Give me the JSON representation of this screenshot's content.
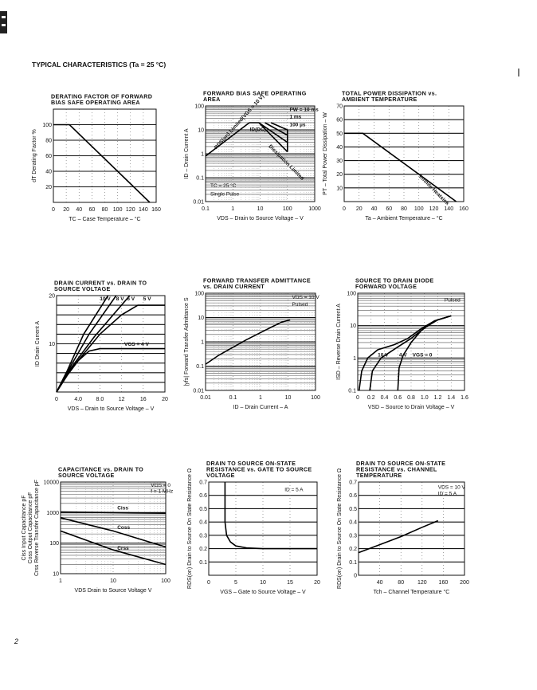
{
  "header": {
    "title": "TYPICAL CHARACTERISTICS (Ta = 25 °C)",
    "page_number": "2"
  },
  "charts": [
    {
      "title": [
        "DERATING FACTOR OF FORWARD",
        "BIAS SAFE OPERATING AREA"
      ],
      "xlabel": "TC – Case Temperature – °C",
      "ylabel": [
        "dT   Derating Factor   %"
      ],
      "xlog": false,
      "ylog": false,
      "xlim": [
        0,
        160
      ],
      "ylim": [
        0,
        120
      ],
      "xticks": [
        0,
        20,
        40,
        60,
        80,
        100,
        120,
        140,
        160
      ],
      "xtick_labels": [
        "0",
        "20",
        "40",
        "60",
        "80",
        "100",
        "120",
        "140",
        "160"
      ],
      "yticks": [
        20,
        40,
        60,
        80,
        100
      ],
      "ytick_labels": [
        "20",
        "40",
        "60",
        "80",
        "100"
      ],
      "series": [
        {
          "points": [
            [
              0,
              100
            ],
            [
              25,
              100
            ],
            [
              150,
              0
            ]
          ]
        }
      ],
      "annotations": []
    },
    {
      "title": [
        "FORWARD BIAS SAFE OPERATING",
        "AREA"
      ],
      "xlabel": "VDS – Drain to Source Voltage – V",
      "ylabel": [
        "ID – Drain Current   A"
      ],
      "xlog": true,
      "ylog": true,
      "xlim": [
        0.1,
        1000
      ],
      "ylim": [
        0.01,
        100
      ],
      "xticks": [
        0.1,
        1,
        10,
        100,
        1000
      ],
      "xtick_labels": [
        "0.1",
        "1",
        "10",
        "100",
        "1000"
      ],
      "yticks": [
        0.01,
        0.1,
        1,
        10,
        100
      ],
      "ytick_labels": [
        "0.01",
        "0.1",
        "1",
        "10",
        "100"
      ],
      "series": [
        {
          "name": "RDS(on) Limited(VGS = 10 V)",
          "points": [
            [
              0.1,
              0.8
            ],
            [
              4,
              20
            ]
          ]
        },
        {
          "name": "ID(DC)",
          "points": [
            [
              4,
              20
            ],
            [
              9,
              20
            ],
            [
              100,
              1.2
            ]
          ]
        },
        {
          "name": "PW = 10 ms",
          "points": [
            [
              9,
              20
            ],
            [
              100,
              3
            ]
          ]
        },
        {
          "name": "1 ms",
          "points": [
            [
              15,
              20
            ],
            [
              100,
              6
            ]
          ]
        },
        {
          "name": "100 µs",
          "points": [
            [
              25,
              20
            ],
            [
              100,
              10
            ],
            [
              100,
              1.2
            ]
          ]
        },
        {
          "name": "Dissipation Limited",
          "points": []
        }
      ],
      "annotations": [
        "TC = 25 °C",
        "Single Pulse"
      ]
    },
    {
      "title": [
        "TOTAL POWER DISSIPATION vs.",
        "AMBIENT TEMPERATURE"
      ],
      "xlabel": "Ta – Ambient Temperature – °C",
      "ylabel": [
        "PT – Total Power Dissipation – W"
      ],
      "xlog": false,
      "ylog": false,
      "xlim": [
        0,
        160
      ],
      "ylim": [
        0,
        70
      ],
      "xticks": [
        0,
        20,
        40,
        60,
        80,
        100,
        120,
        140,
        160
      ],
      "xtick_labels": [
        "0",
        "20",
        "40",
        "60",
        "80",
        "100",
        "120",
        "140",
        "160"
      ],
      "yticks": [
        10,
        20,
        30,
        40,
        50,
        60,
        70
      ],
      "ytick_labels": [
        "10",
        "20",
        "30",
        "40",
        "50",
        "60",
        "70"
      ],
      "series": [
        {
          "name": "Infinite Heatsink",
          "points": [
            [
              0,
              50
            ],
            [
              25,
              50
            ],
            [
              150,
              0
            ]
          ]
        }
      ],
      "annotations": []
    },
    {
      "title": [
        "DRAIN CURRENT vs. DRAIN TO",
        "SOURCE VOLTAGE"
      ],
      "xlabel": "VDS – Drain to Source Voltage – V",
      "ylabel": [
        "ID   Drain Current   A"
      ],
      "xlog": false,
      "ylog": false,
      "xlim": [
        0,
        20
      ],
      "ylim": [
        0,
        20
      ],
      "xticks": [
        0,
        4,
        8,
        12,
        16,
        20
      ],
      "xtick_labels": [
        "0",
        "4.0",
        "8.0",
        "12",
        "16",
        "20"
      ],
      "yticks": [
        2,
        4,
        6,
        8,
        10,
        12,
        14,
        16,
        18,
        20
      ],
      "ytick_labels": [
        "",
        "",
        "",
        "",
        "10",
        "",
        "",
        "",
        "",
        "20"
      ],
      "series": [
        {
          "name": "10 V",
          "points": [
            [
              0,
              0
            ],
            [
              2,
              4.5
            ],
            [
              5,
              12
            ],
            [
              9.5,
              20
            ]
          ]
        },
        {
          "name": "8 V",
          "points": [
            [
              0,
              0
            ],
            [
              2,
              4.2
            ],
            [
              6,
              12
            ],
            [
              11,
              20
            ]
          ]
        },
        {
          "name": "6 V",
          "points": [
            [
              0,
              0
            ],
            [
              2,
              4
            ],
            [
              7,
              11.5
            ],
            [
              13.5,
              20
            ]
          ]
        },
        {
          "name": "5 V",
          "points": [
            [
              0,
              0
            ],
            [
              2,
              3.8
            ],
            [
              8,
              12
            ],
            [
              12,
              16
            ],
            [
              15,
              18
            ],
            [
              20,
              18
            ]
          ]
        },
        {
          "name": "VGS = 4 V",
          "points": [
            [
              0,
              0
            ],
            [
              2,
              3.5
            ],
            [
              4,
              6.5
            ],
            [
              6,
              8.5
            ],
            [
              8,
              9
            ],
            [
              20,
              9
            ]
          ]
        }
      ],
      "annotations": []
    },
    {
      "title": [
        "FORWARD TRANSFER ADMITTANCE",
        "vs. DRAIN CURRENT"
      ],
      "xlabel": "ID – Drain Current – A",
      "ylabel": [
        "|yfs|   Forward Transfer Admittance   S"
      ],
      "xlog": true,
      "ylog": true,
      "xlim": [
        0.01,
        100
      ],
      "ylim": [
        0.01,
        100
      ],
      "xticks": [
        0.01,
        0.1,
        1,
        10,
        100
      ],
      "xtick_labels": [
        "0.01",
        "0.1",
        "1",
        "10",
        "100"
      ],
      "yticks": [
        0.01,
        0.1,
        1,
        10,
        100
      ],
      "ytick_labels": [
        "0.01",
        "0.1",
        "1",
        "10",
        "100"
      ],
      "series": [
        {
          "points": [
            [
              0.01,
              0.12
            ],
            [
              0.03,
              0.28
            ],
            [
              0.1,
              0.6
            ],
            [
              0.3,
              1.2
            ],
            [
              1,
              2.4
            ],
            [
              3,
              4.5
            ],
            [
              6,
              6.5
            ],
            [
              12,
              8
            ]
          ]
        }
      ],
      "annotations": [
        "VDS = 10 V",
        "Pulsed"
      ]
    },
    {
      "title": [
        "SOURCE TO DRAIN DIODE",
        "FORWARD VOLTAGE"
      ],
      "xlabel": "VSD – Source to Drain Voltage – V",
      "ylabel": [
        "ISD – Reverse Drain Current   A"
      ],
      "xlog": false,
      "ylog": true,
      "xlim": [
        0,
        1.6
      ],
      "ylim": [
        0.1,
        100
      ],
      "xticks": [
        0,
        0.2,
        0.4,
        0.6,
        0.8,
        1.0,
        1.2,
        1.4,
        1.6
      ],
      "xtick_labels": [
        "0",
        "0.2",
        "0.4",
        "0.6",
        "0.8",
        "1.0",
        "1.2",
        "1.4",
        "1.6"
      ],
      "yticks": [
        0.1,
        1,
        10,
        100
      ],
      "ytick_labels": [
        "0.1",
        "1",
        "10",
        "100"
      ],
      "series": [
        {
          "name": "10 V",
          "points": [
            [
              0.02,
              0.1
            ],
            [
              0.06,
              0.4
            ],
            [
              0.15,
              1
            ],
            [
              0.3,
              1.8
            ],
            [
              0.55,
              2.6
            ],
            [
              0.75,
              4
            ],
            [
              0.95,
              8
            ],
            [
              1.15,
              14
            ],
            [
              1.4,
              20
            ]
          ]
        },
        {
          "name": "4 V",
          "points": [
            [
              0.18,
              0.1
            ],
            [
              0.22,
              0.4
            ],
            [
              0.35,
              1
            ],
            [
              0.6,
              2.2
            ],
            [
              0.8,
              4
            ],
            [
              1.0,
              8.5
            ],
            [
              1.2,
              15
            ],
            [
              1.4,
              20
            ]
          ]
        },
        {
          "name": "VGS = 0",
          "points": [
            [
              0.6,
              0.1
            ],
            [
              0.62,
              0.5
            ],
            [
              0.68,
              1.2
            ],
            [
              0.8,
              3
            ],
            [
              0.95,
              7
            ],
            [
              1.15,
              14
            ],
            [
              1.4,
              20
            ]
          ]
        }
      ],
      "annotations": [
        "Pulsed"
      ]
    },
    {
      "title": [
        "CAPACITANCE vs. DRAIN TO",
        "SOURCE VOLTAGE"
      ],
      "xlabel": "VDS   Drain to Source Voltage   V",
      "ylabel": [
        "Ciss   Input Capacitance   pF",
        "Coss   Output Capacitance   pF",
        "Crss   Reverse Transfer Capacitance   pF"
      ],
      "xlog": true,
      "ylog": true,
      "xlim": [
        1,
        100
      ],
      "ylim": [
        10,
        10000
      ],
      "xticks": [
        1,
        10,
        100
      ],
      "xtick_labels": [
        "1",
        "10",
        "100"
      ],
      "yticks": [
        10,
        100,
        1000,
        10000
      ],
      "ytick_labels": [
        "10",
        "100",
        "1000",
        "10000"
      ],
      "series": [
        {
          "name": "Ciss",
          "points": [
            [
              1,
              1050
            ],
            [
              100,
              950
            ]
          ]
        },
        {
          "name": "Coss",
          "points": [
            [
              1,
              680
            ],
            [
              10,
              250
            ],
            [
              100,
              75
            ]
          ]
        },
        {
          "name": "Crss",
          "points": [
            [
              1,
              250
            ],
            [
              10,
              60
            ],
            [
              100,
              20
            ]
          ]
        }
      ],
      "annotations": [
        "VGS = 0",
        "f = 1 MHz"
      ]
    },
    {
      "title": [
        "DRAIN TO SOURCE ON-STATE",
        "RESISTANCE vs. GATE TO SOURCE",
        "VOLTAGE"
      ],
      "xlabel": "VGS – Gate to Source Voltage – V",
      "ylabel": [
        "RDS(on)   Drain to Source On State Resistance   Ω"
      ],
      "xlog": false,
      "ylog": false,
      "xlim": [
        0,
        20
      ],
      "ylim": [
        0,
        0.7
      ],
      "xticks": [
        0,
        5,
        10,
        15,
        20
      ],
      "xtick_labels": [
        "0",
        "5",
        "10",
        "15",
        "20"
      ],
      "yticks": [
        0.1,
        0.2,
        0.3,
        0.4,
        0.5,
        0.6,
        0.7
      ],
      "ytick_labels": [
        "0.1",
        "0.2",
        "0.3",
        "0.4",
        "0.5",
        "0.6",
        "0.7"
      ],
      "series": [
        {
          "points": [
            [
              3,
              0.7
            ],
            [
              3,
              0.4
            ],
            [
              3.3,
              0.3
            ],
            [
              4,
              0.25
            ],
            [
              5,
              0.22
            ],
            [
              7,
              0.205
            ],
            [
              10,
              0.2
            ],
            [
              20,
              0.2
            ]
          ]
        }
      ],
      "annotations": [
        "ID = 5 A"
      ]
    },
    {
      "title": [
        "DRAIN TO SOURCE ON-STATE",
        "RESISTANCE vs. CHANNEL",
        "TEMPERATURE"
      ],
      "xlabel": "Tch – Channel Temperature   °C",
      "ylabel": [
        "RDS(on)   Drain to Source On State Resistance   Ω"
      ],
      "xlog": false,
      "ylog": false,
      "xlim": [
        0,
        200
      ],
      "ylim": [
        0,
        0.7
      ],
      "xticks": [
        40,
        80,
        120,
        160,
        200
      ],
      "xtick_labels": [
        "40",
        "80",
        "120",
        "160",
        "200"
      ],
      "yticks": [
        0,
        0.1,
        0.2,
        0.3,
        0.4,
        0.5,
        0.6,
        0.7
      ],
      "ytick_labels": [
        "0",
        "0.1",
        "0.2",
        "0.3",
        "0.4",
        "0.5",
        "0.6",
        "0.7"
      ],
      "series": [
        {
          "points": [
            [
              0,
              0.17
            ],
            [
              40,
              0.23
            ],
            [
              80,
              0.29
            ],
            [
              120,
              0.36
            ],
            [
              150,
              0.41
            ]
          ]
        }
      ],
      "annotations": [
        "VDS = 10 V",
        "ID = 5 A"
      ]
    }
  ]
}
